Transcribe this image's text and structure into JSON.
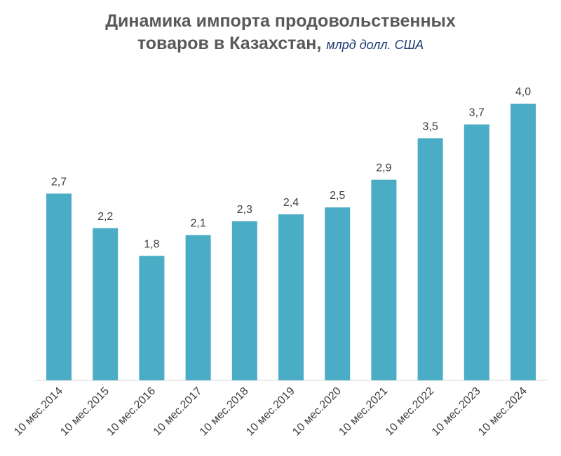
{
  "chart_data": {
    "type": "bar",
    "title": "Динамика импорта продовольственных товаров в Казахстан,",
    "subtitle": "млрд долл. США",
    "categories": [
      "10 мес.2014",
      "10 мес.2015",
      "10 мес.2016",
      "10 мес.2017",
      "10 мес.2018",
      "10 мес.2019",
      "10 мес.2020",
      "10 мес.2021",
      "10 мес.2022",
      "10 мес.2023",
      "10 мес.2024"
    ],
    "values": [
      2.7,
      2.2,
      1.8,
      2.1,
      2.3,
      2.4,
      2.5,
      2.9,
      3.5,
      3.7,
      4.0
    ],
    "value_labels": [
      "2,7",
      "2,2",
      "1,8",
      "2,1",
      "2,3",
      "2,4",
      "2,5",
      "2,9",
      "3,5",
      "3,7",
      "4,0"
    ],
    "color": "#4bacc6"
  }
}
